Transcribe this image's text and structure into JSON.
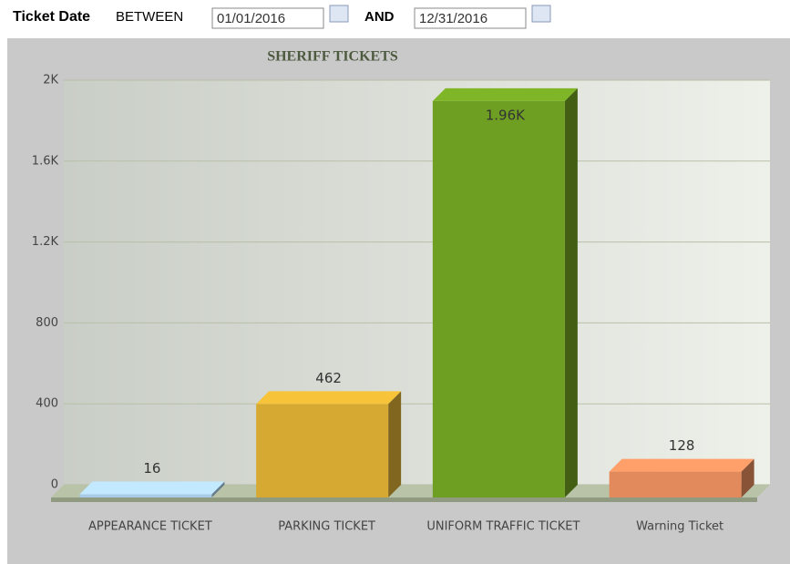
{
  "filter": {
    "label": "Ticket Date",
    "between": "BETWEEN",
    "start": "01/01/2016",
    "and": "AND",
    "end": "12/31/2016"
  },
  "chart_data": {
    "type": "bar",
    "title": "SHERIFF TICKETS",
    "categories": [
      "APPEARANCE TICKET",
      "PARKING TICKET",
      "UNIFORM TRAFFIC TICKET",
      "Warning Ticket"
    ],
    "values": [
      16,
      462,
      1960,
      128
    ],
    "value_labels": [
      "16",
      "462",
      "1.96K",
      "128"
    ],
    "colors": [
      "#a9cbe8",
      "#d6aa32",
      "#6e9e22",
      "#e38a5c"
    ],
    "ylim": [
      0,
      2000
    ],
    "yticks": [
      0,
      400,
      800,
      {
        "value": 1200,
        "label": "1.2K"
      },
      {
        "value": 1600,
        "label": "1.6K"
      },
      {
        "value": 2000,
        "label": "2K"
      }
    ],
    "grid": true
  }
}
